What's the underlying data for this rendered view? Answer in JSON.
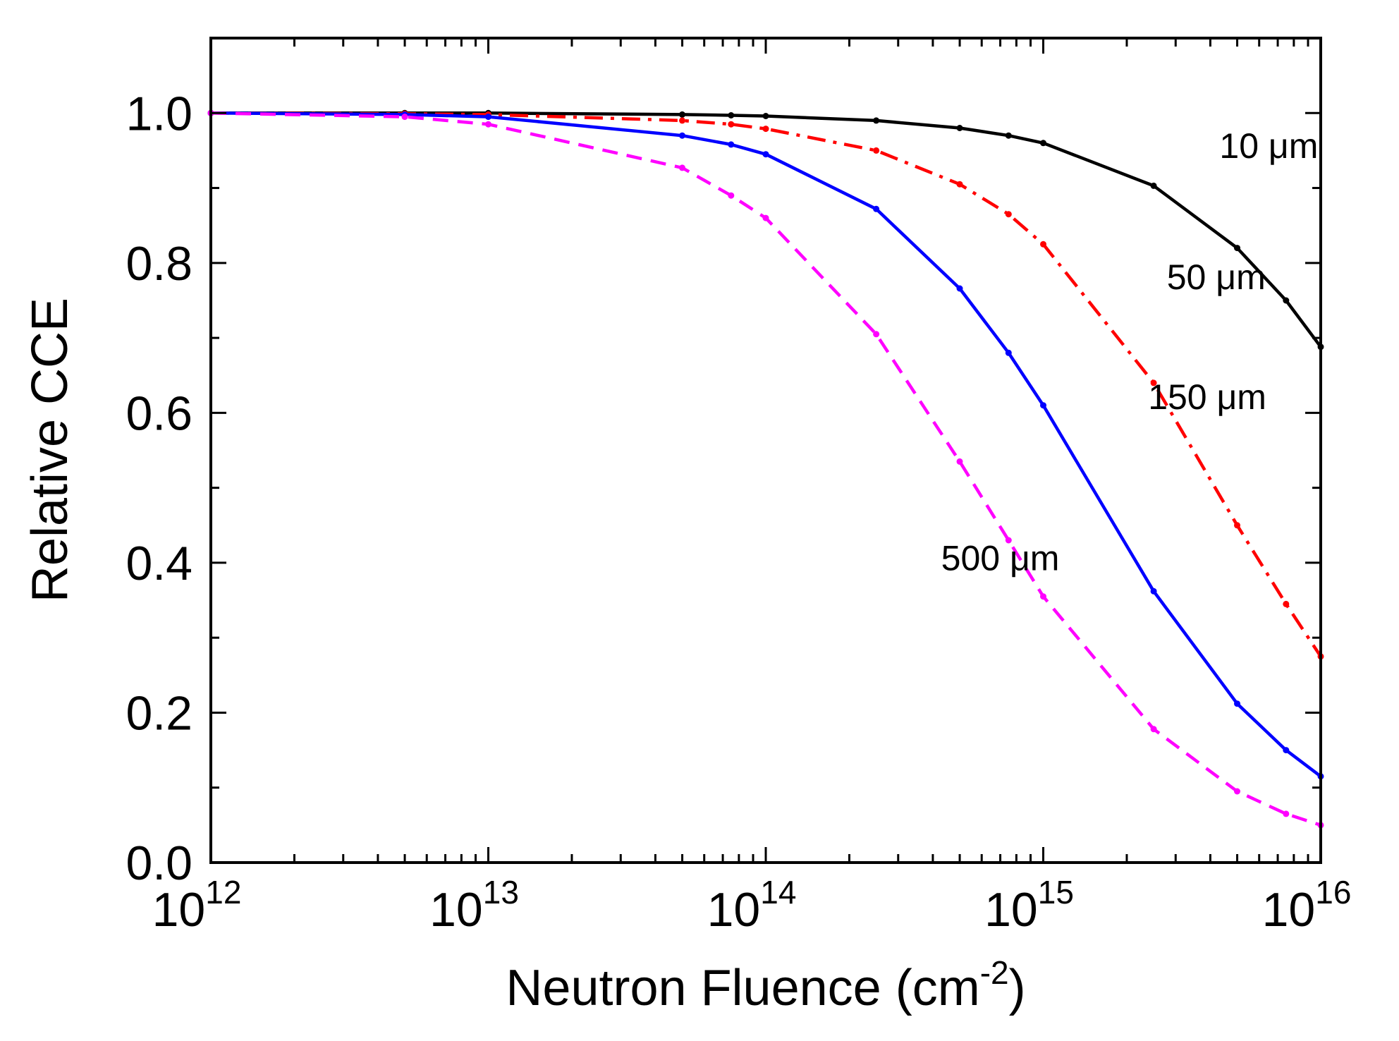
{
  "chart_data": {
    "type": "line",
    "title": "",
    "xlabel": "Neutron Fluence (cm-2)",
    "xlabel_base": "Neutron Fluence (cm",
    "xlabel_sup": "-2",
    "xlabel_close": ")",
    "ylabel": "Relative CCE",
    "xscale": "log",
    "xlim": [
      1000000000000.0,
      1e+16
    ],
    "ylim": [
      0.0,
      1.1
    ],
    "x_ticks": [
      {
        "base": "10",
        "exp": "12",
        "value": 1000000000000.0
      },
      {
        "base": "10",
        "exp": "13",
        "value": 10000000000000.0
      },
      {
        "base": "10",
        "exp": "14",
        "value": 100000000000000.0
      },
      {
        "base": "10",
        "exp": "15",
        "value": 1000000000000000.0
      },
      {
        "base": "10",
        "exp": "16",
        "value": 1e+16
      }
    ],
    "y_ticks": [
      "0.0",
      "0.2",
      "0.4",
      "0.6",
      "0.8",
      "1.0"
    ],
    "y_tick_values": [
      0.0,
      0.2,
      0.4,
      0.6,
      0.8,
      1.0
    ],
    "y_minor_ticks": [
      0.1,
      0.3,
      0.5,
      0.7,
      0.9
    ],
    "grid": false,
    "legend": "inline labels",
    "series": [
      {
        "name": "10 μm",
        "color": "#000000",
        "dash": "solid",
        "x": [
          1000000000000.0,
          5000000000000.0,
          10000000000000.0,
          50000000000000.0,
          75000000000000.0,
          100000000000000.0,
          250000000000000.0,
          500000000000000.0,
          750000000000000.0,
          1000000000000000.0,
          2500000000000000.0,
          5000000000000000.0,
          7500000000000000.0,
          1e+16
        ],
        "y": [
          1.0,
          1.0,
          1.0,
          0.998,
          0.997,
          0.996,
          0.99,
          0.98,
          0.97,
          0.96,
          0.903,
          0.82,
          0.75,
          0.688
        ]
      },
      {
        "name": "50 μm",
        "color": "#ff0000",
        "dash": "dashdot",
        "x": [
          1000000000000.0,
          5000000000000.0,
          10000000000000.0,
          50000000000000.0,
          75000000000000.0,
          100000000000000.0,
          250000000000000.0,
          500000000000000.0,
          750000000000000.0,
          1000000000000000.0,
          2500000000000000.0,
          5000000000000000.0,
          7500000000000000.0,
          1e+16
        ],
        "y": [
          1.0,
          0.999,
          0.998,
          0.99,
          0.985,
          0.979,
          0.95,
          0.905,
          0.865,
          0.825,
          0.64,
          0.45,
          0.345,
          0.275
        ]
      },
      {
        "name": "150 μm",
        "color": "#0000ff",
        "dash": "solid",
        "x": [
          1000000000000.0,
          5000000000000.0,
          10000000000000.0,
          50000000000000.0,
          75000000000000.0,
          100000000000000.0,
          250000000000000.0,
          500000000000000.0,
          750000000000000.0,
          1000000000000000.0,
          2500000000000000.0,
          5000000000000000.0,
          7500000000000000.0,
          1e+16
        ],
        "y": [
          1.0,
          0.998,
          0.995,
          0.97,
          0.958,
          0.945,
          0.872,
          0.766,
          0.68,
          0.61,
          0.362,
          0.212,
          0.15,
          0.115
        ]
      },
      {
        "name": "500 μm",
        "color": "#ff00ff",
        "dash": "dashed",
        "x": [
          1000000000000.0,
          5000000000000.0,
          10000000000000.0,
          50000000000000.0,
          75000000000000.0,
          100000000000000.0,
          250000000000000.0,
          500000000000000.0,
          750000000000000.0,
          1000000000000000.0,
          2500000000000000.0,
          5000000000000000.0,
          7500000000000000.0,
          1e+16
        ],
        "y": [
          1.0,
          0.995,
          0.985,
          0.927,
          0.89,
          0.86,
          0.705,
          0.535,
          0.43,
          0.355,
          0.178,
          0.095,
          0.065,
          0.05
        ]
      }
    ],
    "annotations": [
      {
        "text": "10 μm",
        "series": 0,
        "at_x": 6500000000000000.0,
        "at_y": 0.94
      },
      {
        "text": "50 μm",
        "series": 1,
        "at_x": 4200000000000000.0,
        "at_y": 0.765
      },
      {
        "text": "150 μm",
        "series": 2,
        "at_x": 3900000000000000.0,
        "at_y": 0.605
      },
      {
        "text": "500 μm",
        "series": 3,
        "at_x": 700000000000000.0,
        "at_y": 0.39
      }
    ]
  }
}
